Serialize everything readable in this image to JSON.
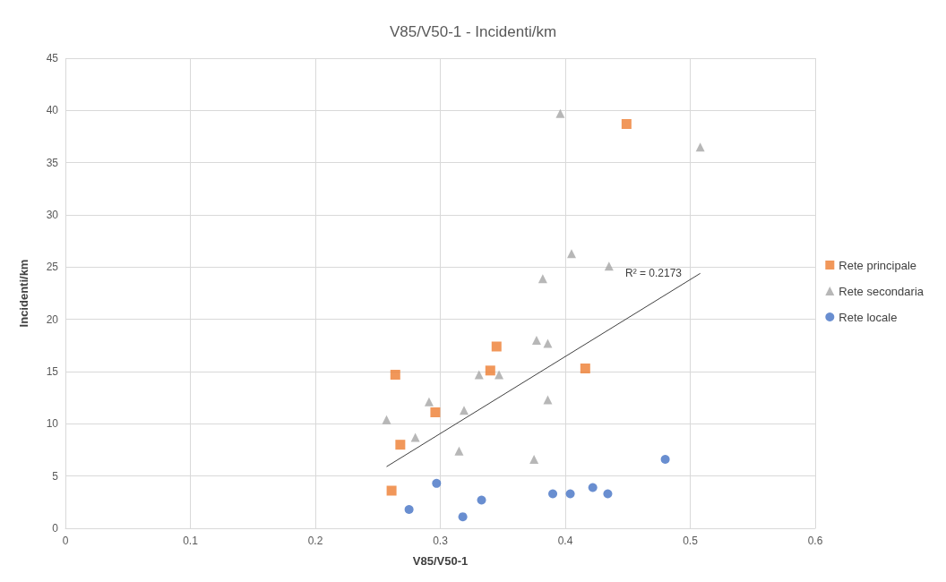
{
  "chart_data": {
    "type": "scatter",
    "title": "V85/V50-1 - Incidenti/km",
    "xlabel": "V85/V50-1",
    "ylabel": "Incidenti/km",
    "xlim": [
      0,
      0.6
    ],
    "xticks": [
      0,
      0.1,
      0.2,
      0.3,
      0.4,
      0.5,
      0.6
    ],
    "ylim": [
      0,
      45
    ],
    "yticks": [
      0,
      5,
      10,
      15,
      20,
      25,
      30,
      35,
      40,
      45
    ],
    "grid": true,
    "legend": "right",
    "annotations": [
      "R² = 0.2173"
    ],
    "series": [
      {
        "name": "Rete principale",
        "color": "#ed7d31",
        "marker": "square",
        "x": [
          0.261,
          0.264,
          0.268,
          0.296,
          0.34,
          0.345,
          0.416,
          0.449
        ],
        "values": [
          3.6,
          14.7,
          8.0,
          11.1,
          15.1,
          17.4,
          15.3,
          38.7
        ]
      },
      {
        "name": "Rete secondaria",
        "color": "#a5a5a5",
        "marker": "triangle",
        "x": [
          0.257,
          0.28,
          0.291,
          0.315,
          0.319,
          0.331,
          0.347,
          0.377,
          0.382,
          0.386,
          0.386,
          0.375,
          0.396,
          0.405,
          0.435,
          0.508
        ],
        "values": [
          10.4,
          8.7,
          12.1,
          7.4,
          11.3,
          14.7,
          14.7,
          18.0,
          23.9,
          17.7,
          12.3,
          6.6,
          39.7,
          26.3,
          25.1,
          36.5
        ]
      },
      {
        "name": "Rete locale",
        "color": "#4472c4",
        "marker": "circle",
        "x": [
          0.275,
          0.297,
          0.318,
          0.333,
          0.39,
          0.404,
          0.422,
          0.434,
          0.48
        ],
        "values": [
          1.8,
          4.3,
          1.1,
          2.7,
          3.3,
          3.3,
          3.9,
          3.3,
          6.6
        ]
      },
      {
        "type": "line",
        "color": "#404040",
        "marker": "none",
        "x": [
          0.257,
          0.508
        ],
        "values": [
          5.9,
          24.4
        ]
      }
    ]
  }
}
